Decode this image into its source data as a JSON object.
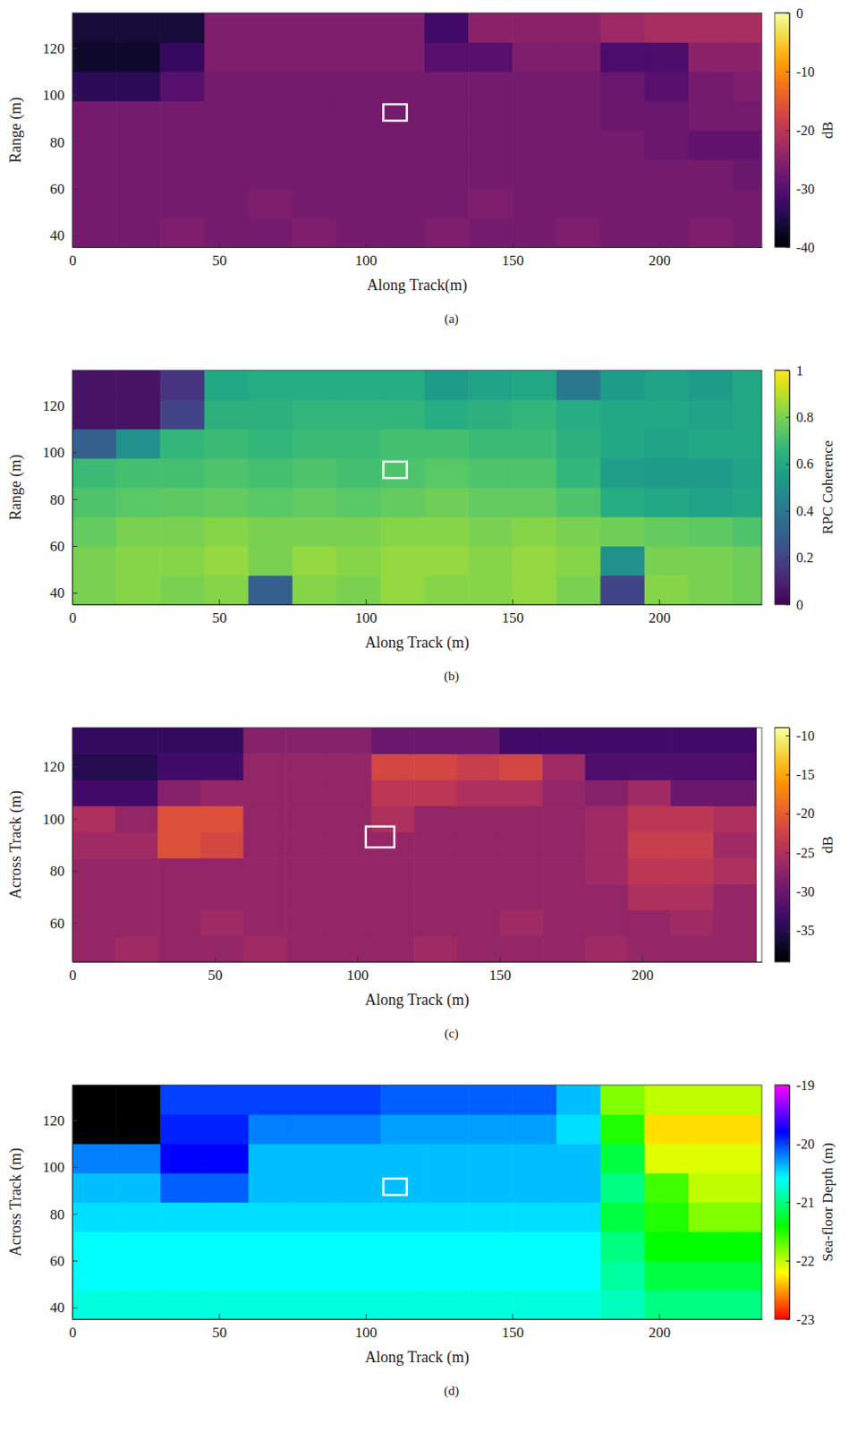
{
  "chart_data": [
    {
      "type": "heatmap",
      "caption": "(a)",
      "xlabel": "Along Track(m)",
      "ylabel": "Range (m)",
      "x": [
        7.5,
        22.5,
        37.5,
        52.5,
        67.5,
        82.5,
        97.5,
        112.5,
        127.5,
        142.5,
        157.5,
        172.5,
        187.5,
        202.5,
        217.5,
        232.5
      ],
      "y": [
        41.25,
        53.75,
        66.25,
        78.75,
        91.25,
        103.75,
        116.25,
        128.75
      ],
      "values": [
        [
          -27,
          -27,
          -26,
          -27,
          -27,
          -26,
          -27,
          -27,
          -26,
          -27,
          -27,
          -26,
          -27,
          -27,
          -26,
          -27
        ],
        [
          -27,
          -27,
          -27,
          -27,
          -26,
          -27,
          -27,
          -27,
          -27,
          -26,
          -27,
          -27,
          -27,
          -27,
          -27,
          -27
        ],
        [
          -27,
          -27,
          -27,
          -27,
          -27,
          -27,
          -27,
          -27,
          -27,
          -27,
          -27,
          -27,
          -27,
          -27,
          -27,
          -28
        ],
        [
          -27,
          -27,
          -27,
          -27,
          -27,
          -27,
          -27,
          -27,
          -27,
          -27,
          -27,
          -27,
          -27,
          -28,
          -29,
          -29
        ],
        [
          -27,
          -27,
          -27,
          -27,
          -27,
          -27,
          -27,
          -27,
          -27,
          -27,
          -27,
          -27,
          -28,
          -28,
          -27,
          -27
        ],
        [
          -34,
          -34,
          -30,
          -27,
          -27,
          -27,
          -27,
          -27,
          -27,
          -27,
          -27,
          -27,
          -28,
          -30,
          -27,
          -26
        ],
        [
          -37,
          -37,
          -33,
          -26,
          -26,
          -26,
          -26,
          -26,
          -30,
          -30,
          -26,
          -26,
          -31,
          -31,
          -25,
          -25
        ],
        [
          -36,
          -36,
          -36,
          -26,
          -26,
          -26,
          -26,
          -26,
          -32,
          -25,
          -25,
          -25,
          -23,
          -22,
          -22,
          -22
        ]
      ],
      "xlim": [
        0,
        235
      ],
      "ylim": [
        35,
        135
      ],
      "xticks": [
        0,
        50,
        100,
        150,
        200
      ],
      "yticks": [
        40,
        60,
        80,
        100,
        120
      ],
      "color": "inferno",
      "colorbar": {
        "label": "dB",
        "range": [
          -40,
          0
        ],
        "ticks": [
          -40,
          -30,
          -20,
          -10,
          0
        ]
      },
      "highlight": {
        "x": [
          106,
          114
        ],
        "y": [
          89,
          96
        ]
      }
    },
    {
      "type": "heatmap",
      "caption": "(b)",
      "xlabel": "Along Track (m)",
      "ylabel": "Range (m)",
      "x": [
        7.5,
        22.5,
        37.5,
        52.5,
        67.5,
        82.5,
        97.5,
        112.5,
        127.5,
        142.5,
        157.5,
        172.5,
        187.5,
        202.5,
        217.5,
        232.5
      ],
      "y": [
        41.25,
        53.75,
        66.25,
        78.75,
        91.25,
        103.75,
        116.25,
        128.75
      ],
      "values": [
        [
          0.8,
          0.82,
          0.8,
          0.82,
          0.3,
          0.82,
          0.8,
          0.84,
          0.82,
          0.82,
          0.84,
          0.8,
          0.2,
          0.82,
          0.8,
          0.78
        ],
        [
          0.8,
          0.82,
          0.82,
          0.84,
          0.8,
          0.84,
          0.82,
          0.84,
          0.84,
          0.82,
          0.84,
          0.82,
          0.5,
          0.8,
          0.8,
          0.78
        ],
        [
          0.76,
          0.8,
          0.8,
          0.82,
          0.8,
          0.8,
          0.8,
          0.82,
          0.82,
          0.8,
          0.82,
          0.8,
          0.78,
          0.76,
          0.75,
          0.72
        ],
        [
          0.72,
          0.74,
          0.75,
          0.76,
          0.74,
          0.76,
          0.74,
          0.76,
          0.78,
          0.76,
          0.76,
          0.72,
          0.62,
          0.6,
          0.58,
          0.6
        ],
        [
          0.68,
          0.7,
          0.7,
          0.72,
          0.7,
          0.72,
          0.7,
          0.72,
          0.74,
          0.72,
          0.72,
          0.66,
          0.56,
          0.55,
          0.55,
          0.58
        ],
        [
          0.3,
          0.5,
          0.66,
          0.68,
          0.66,
          0.68,
          0.68,
          0.7,
          0.7,
          0.68,
          0.68,
          0.64,
          0.6,
          0.58,
          0.6,
          0.6
        ],
        [
          0.05,
          0.05,
          0.2,
          0.64,
          0.64,
          0.66,
          0.66,
          0.66,
          0.62,
          0.64,
          0.66,
          0.62,
          0.6,
          0.6,
          0.58,
          0.6
        ],
        [
          0.05,
          0.05,
          0.15,
          0.6,
          0.62,
          0.62,
          0.62,
          0.62,
          0.55,
          0.58,
          0.6,
          0.4,
          0.55,
          0.58,
          0.55,
          0.6
        ]
      ],
      "xlim": [
        0,
        235
      ],
      "ylim": [
        35,
        135
      ],
      "xticks": [
        0,
        50,
        100,
        150,
        200
      ],
      "yticks": [
        40,
        60,
        80,
        100,
        120
      ],
      "color": "viridis",
      "colorbar": {
        "label": "RPC Coherence",
        "range": [
          0,
          1
        ],
        "ticks": [
          0,
          0.2,
          0.4,
          0.6,
          0.8,
          1
        ]
      },
      "highlight": {
        "x": [
          106,
          114
        ],
        "y": [
          89,
          96
        ]
      }
    },
    {
      "type": "heatmap",
      "caption": "(c)",
      "xlabel": "Along Track (m)",
      "ylabel": "Across Track (m)",
      "x": [
        7.5,
        22.5,
        37.5,
        52.5,
        67.5,
        82.5,
        97.5,
        112.5,
        127.5,
        142.5,
        157.5,
        172.5,
        187.5,
        202.5,
        217.5,
        232.5
      ],
      "y": [
        50,
        60,
        70,
        80,
        90,
        100,
        110,
        120,
        130
      ],
      "values": [
        [
          -27,
          -26,
          -27,
          -27,
          -26,
          -27,
          -27,
          -27,
          -26,
          -27,
          -27,
          -27,
          -26,
          -27,
          -27,
          -27
        ],
        [
          -27,
          -27,
          -27,
          -26,
          -27,
          -27,
          -27,
          -27,
          -27,
          -27,
          -26,
          -27,
          -27,
          -27,
          -26,
          -27
        ],
        [
          -27,
          -27,
          -27,
          -27,
          -27,
          -27,
          -27,
          -27,
          -27,
          -27,
          -27,
          -27,
          -27,
          -25,
          -25,
          -27
        ],
        [
          -27,
          -27,
          -27,
          -27,
          -27,
          -27,
          -27,
          -27,
          -27,
          -27,
          -27,
          -27,
          -26,
          -24,
          -24,
          -25
        ],
        [
          -26,
          -26,
          -21,
          -22,
          -27,
          -27,
          -27,
          -27,
          -27,
          -27,
          -27,
          -27,
          -26,
          -23,
          -23,
          -26
        ],
        [
          -25,
          -27,
          -21,
          -21,
          -27,
          -27,
          -27,
          -25,
          -27,
          -27,
          -27,
          -27,
          -26,
          -24,
          -24,
          -25
        ],
        [
          -33,
          -33,
          -28,
          -27,
          -27,
          -27,
          -27,
          -24,
          -24,
          -25,
          -25,
          -27,
          -28,
          -26,
          -30,
          -30
        ],
        [
          -35,
          -35,
          -33,
          -33,
          -27,
          -27,
          -27,
          -22,
          -22,
          -23,
          -22,
          -26,
          -32,
          -32,
          -32,
          -32
        ],
        [
          -34,
          -34,
          -34,
          -34,
          -28,
          -28,
          -28,
          -30,
          -30,
          -30,
          -33,
          -33,
          -33,
          -33,
          -33,
          -33
        ]
      ],
      "xlim": [
        0,
        242
      ],
      "ylim": [
        45,
        135
      ],
      "xticks": [
        0,
        50,
        100,
        150,
        200
      ],
      "yticks": [
        60,
        80,
        100,
        120
      ],
      "color": "inferno",
      "colorbar": {
        "label": "dB",
        "range": [
          -39,
          -9
        ],
        "ticks": [
          -35,
          -30,
          -25,
          -20,
          -15,
          -10
        ]
      },
      "highlight": {
        "x": [
          103,
          113
        ],
        "y": [
          89,
          97
        ]
      }
    },
    {
      "type": "heatmap",
      "caption": "(d)",
      "xlabel": "Along Track (m)",
      "ylabel": "Across Track (m)",
      "x": [
        7.5,
        22.5,
        37.5,
        52.5,
        67.5,
        82.5,
        97.5,
        112.5,
        127.5,
        142.5,
        157.5,
        172.5,
        187.5,
        202.5,
        217.5,
        232.5
      ],
      "y": [
        41.25,
        53.75,
        66.25,
        78.75,
        91.25,
        103.75,
        116.25,
        128.75
      ],
      "values": [
        [
          -20.7,
          -20.7,
          -20.7,
          -20.7,
          -20.7,
          -20.7,
          -20.7,
          -20.7,
          -20.7,
          -20.7,
          -20.7,
          -20.7,
          -20.8,
          -21.0,
          -21.0,
          -21.0
        ],
        [
          -20.6,
          -20.6,
          -20.6,
          -20.6,
          -20.6,
          -20.6,
          -20.6,
          -20.6,
          -20.6,
          -20.6,
          -20.6,
          -20.6,
          -20.9,
          -21.2,
          -21.2,
          -21.2
        ],
        [
          -20.6,
          -20.6,
          -20.6,
          -20.6,
          -20.6,
          -20.6,
          -20.6,
          -20.6,
          -20.6,
          -20.6,
          -20.6,
          -20.6,
          -21.0,
          -21.4,
          -21.4,
          -21.4
        ],
        [
          -20.5,
          -20.5,
          -20.5,
          -20.5,
          -20.5,
          -20.5,
          -20.5,
          -20.5,
          -20.5,
          -20.5,
          -20.5,
          -20.5,
          -21.2,
          -21.5,
          -21.8,
          -21.8
        ],
        [
          -20.4,
          -20.4,
          -20.1,
          -20.1,
          -20.4,
          -20.4,
          -20.4,
          -20.4,
          -20.4,
          -20.4,
          -20.4,
          -20.4,
          -21.0,
          -21.6,
          -22.0,
          -22.0
        ],
        [
          -20.2,
          -20.2,
          -19.8,
          -19.8,
          -20.4,
          -20.4,
          -20.4,
          -20.4,
          -20.4,
          -20.4,
          -20.4,
          -20.4,
          -21.2,
          -22.1,
          -22.1,
          -22.1
        ],
        [
          null,
          null,
          -19.9,
          -19.9,
          -20.2,
          -20.2,
          -20.2,
          -20.3,
          -20.3,
          -20.3,
          -20.3,
          -20.5,
          -21.5,
          -22.3,
          -22.3,
          -22.3
        ],
        [
          null,
          null,
          -20.0,
          -20.0,
          -20.0,
          -20.0,
          -20.0,
          -20.1,
          -20.1,
          -20.1,
          -20.1,
          -20.4,
          -21.8,
          -22.0,
          -22.0,
          -22.0
        ]
      ],
      "xlim": [
        0,
        235
      ],
      "ylim": [
        35,
        135
      ],
      "xticks": [
        0,
        50,
        100,
        150,
        200
      ],
      "yticks": [
        40,
        60,
        80,
        100,
        120
      ],
      "color": "hsv",
      "colorbar": {
        "label": "Sea-floor Depth (m)",
        "range": [
          -23,
          -19
        ],
        "ticks": [
          -23,
          -22,
          -21,
          -20,
          -19
        ]
      },
      "highlight": {
        "x": [
          106,
          114
        ],
        "y": [
          88,
          95
        ]
      }
    }
  ]
}
